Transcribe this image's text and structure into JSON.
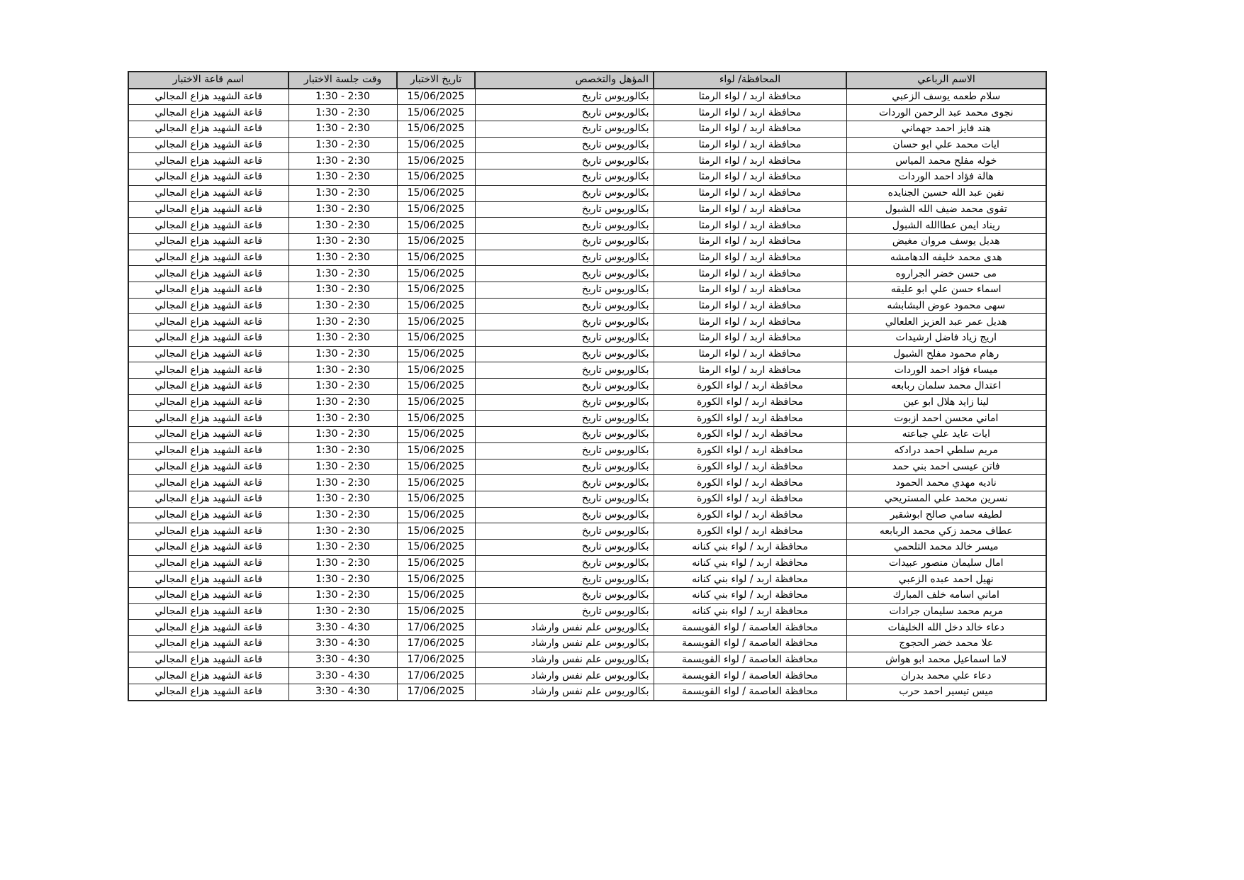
{
  "headers": {
    "name": "الاسم الرباعي",
    "governorate": "المحافظة/ لواء",
    "qualification": "المؤهل والتخصص",
    "date": "تاريخ الاختبار",
    "time": "وقت جلسة الاختبار",
    "room": "اسم قاعة الاختبار"
  },
  "rows": [
    {
      "name": "سلام طعمه يوسف الزعبي",
      "governorate": "محافظة اربد /  لواء الرمثا",
      "qualification": "بكالوريوس تاريخ",
      "date": "15/06/2025",
      "time": "1:30 - 2:30",
      "room": "قاعة الشهيد هزاع المجالي"
    },
    {
      "name": "نجوى محمد عبد الرحمن الوردات",
      "governorate": "محافظة اربد /  لواء الرمثا",
      "qualification": "بكالوريوس تاريخ",
      "date": "15/06/2025",
      "time": "1:30 - 2:30",
      "room": "قاعة الشهيد هزاع المجالي"
    },
    {
      "name": "هند فايز احمد جهماني",
      "governorate": "محافظة اربد /  لواء الرمثا",
      "qualification": "بكالوريوس تاريخ",
      "date": "15/06/2025",
      "time": "1:30 - 2:30",
      "room": "قاعة الشهيد هزاع المجالي"
    },
    {
      "name": "ايات محمد علي ابو حسان",
      "governorate": "محافظة اربد /  لواء الرمثا",
      "qualification": "بكالوريوس تاريخ",
      "date": "15/06/2025",
      "time": "1:30 - 2:30",
      "room": "قاعة الشهيد هزاع المجالي"
    },
    {
      "name": "خوله مفلح محمد المياس",
      "governorate": "محافظة اربد /  لواء الرمثا",
      "qualification": "بكالوريوس تاريخ",
      "date": "15/06/2025",
      "time": "1:30 - 2:30",
      "room": "قاعة الشهيد هزاع المجالي"
    },
    {
      "name": "هالة فؤاد احمد الوردات",
      "governorate": "محافظة اربد /  لواء الرمثا",
      "qualification": "بكالوريوس تاريخ",
      "date": "15/06/2025",
      "time": "1:30 - 2:30",
      "room": "قاعة الشهيد هزاع المجالي"
    },
    {
      "name": "نفين عبد الله حسين الجنايده",
      "governorate": "محافظة اربد /  لواء الرمثا",
      "qualification": "بكالوريوس تاريخ",
      "date": "15/06/2025",
      "time": "1:30 - 2:30",
      "room": "قاعة الشهيد هزاع المجالي"
    },
    {
      "name": "تقوى محمد ضيف الله الشبول",
      "governorate": "محافظة اربد /  لواء الرمثا",
      "qualification": "بكالوريوس تاريخ",
      "date": "15/06/2025",
      "time": "1:30 - 2:30",
      "room": "قاعة الشهيد هزاع المجالي"
    },
    {
      "name": "ريناد ايمن عطاالله الشبول",
      "governorate": "محافظة اربد /  لواء الرمثا",
      "qualification": "بكالوريوس تاريخ",
      "date": "15/06/2025",
      "time": "1:30 - 2:30",
      "room": "قاعة الشهيد هزاع المجالي"
    },
    {
      "name": "هديل يوسف مروان مغيض",
      "governorate": "محافظة اربد /  لواء الرمثا",
      "qualification": "بكالوريوس تاريخ",
      "date": "15/06/2025",
      "time": "1:30 - 2:30",
      "room": "قاعة الشهيد هزاع المجالي"
    },
    {
      "name": "هدى محمد خليفه الدهامشه",
      "governorate": "محافظة اربد /  لواء الرمثا",
      "qualification": "بكالوريوس تاريخ",
      "date": "15/06/2025",
      "time": "1:30 - 2:30",
      "room": "قاعة الشهيد هزاع المجالي"
    },
    {
      "name": "مى حسن خضر الجراروه",
      "governorate": "محافظة اربد /  لواء الرمثا",
      "qualification": "بكالوريوس تاريخ",
      "date": "15/06/2025",
      "time": "1:30 - 2:30",
      "room": "قاعة الشهيد هزاع المجالي"
    },
    {
      "name": "اسماء حسن علي ابو عليقه",
      "governorate": "محافظة اربد /  لواء الرمثا",
      "qualification": "بكالوريوس تاريخ",
      "date": "15/06/2025",
      "time": "1:30 - 2:30",
      "room": "قاعة الشهيد هزاع المجالي"
    },
    {
      "name": "سهى محمود عوض البشابشه",
      "governorate": "محافظة اربد /  لواء الرمثا",
      "qualification": "بكالوريوس تاريخ",
      "date": "15/06/2025",
      "time": "1:30 - 2:30",
      "room": "قاعة الشهيد هزاع المجالي"
    },
    {
      "name": "هديل عمر عبد العزيز العلعالي",
      "governorate": "محافظة اربد /  لواء الرمثا",
      "qualification": "بكالوريوس تاريخ",
      "date": "15/06/2025",
      "time": "1:30 - 2:30",
      "room": "قاعة الشهيد هزاع المجالي"
    },
    {
      "name": "اريج زياد فاضل ارشيدات",
      "governorate": "محافظة اربد /  لواء الرمثا",
      "qualification": "بكالوريوس تاريخ",
      "date": "15/06/2025",
      "time": "1:30 - 2:30",
      "room": "قاعة الشهيد هزاع المجالي"
    },
    {
      "name": "رهام محمود مفلح الشبول",
      "governorate": "محافظة اربد /  لواء الرمثا",
      "qualification": "بكالوريوس تاريخ",
      "date": "15/06/2025",
      "time": "1:30 - 2:30",
      "room": "قاعة الشهيد هزاع المجالي"
    },
    {
      "name": "ميساء فؤاد احمد الوردات",
      "governorate": "محافظة اربد /  لواء الرمثا",
      "qualification": "بكالوريوس تاريخ",
      "date": "15/06/2025",
      "time": "1:30 - 2:30",
      "room": "قاعة الشهيد هزاع المجالي"
    },
    {
      "name": "اعتدال محمد سلمان ربابعه",
      "governorate": "محافظة اربد / لواء الكورة",
      "qualification": "بكالوريوس تاريخ",
      "date": "15/06/2025",
      "time": "1:30 - 2:30",
      "room": "قاعة الشهيد هزاع المجالي"
    },
    {
      "name": "لينا زايد هلال ابو عين",
      "governorate": "محافظة اربد / لواء الكورة",
      "qualification": "بكالوريوس تاريخ",
      "date": "15/06/2025",
      "time": "1:30 - 2:30",
      "room": "قاعة الشهيد هزاع المجالي"
    },
    {
      "name": "اماني محسن احمد ازبوت",
      "governorate": "محافظة اربد / لواء الكورة",
      "qualification": "بكالوريوس تاريخ",
      "date": "15/06/2025",
      "time": "1:30 - 2:30",
      "room": "قاعة الشهيد هزاع المجالي"
    },
    {
      "name": "ايات عايد علي جباعته",
      "governorate": "محافظة اربد / لواء الكورة",
      "qualification": "بكالوريوس تاريخ",
      "date": "15/06/2025",
      "time": "1:30 - 2:30",
      "room": "قاعة الشهيد هزاع المجالي"
    },
    {
      "name": "مريم سلطي احمد درادكه",
      "governorate": "محافظة اربد / لواء الكورة",
      "qualification": "بكالوريوس تاريخ",
      "date": "15/06/2025",
      "time": "1:30 - 2:30",
      "room": "قاعة الشهيد هزاع المجالي"
    },
    {
      "name": "فاتن عيسى احمد بني  حمد",
      "governorate": "محافظة اربد / لواء الكورة",
      "qualification": "بكالوريوس تاريخ",
      "date": "15/06/2025",
      "time": "1:30 - 2:30",
      "room": "قاعة الشهيد هزاع المجالي"
    },
    {
      "name": "ناديه مهدي محمد الحمود",
      "governorate": "محافظة اربد / لواء الكورة",
      "qualification": "بكالوريوس تاريخ",
      "date": "15/06/2025",
      "time": "1:30 - 2:30",
      "room": "قاعة الشهيد هزاع المجالي"
    },
    {
      "name": "نسرين محمد علي المستريحي",
      "governorate": "محافظة اربد / لواء الكورة",
      "qualification": "بكالوريوس تاريخ",
      "date": "15/06/2025",
      "time": "1:30 - 2:30",
      "room": "قاعة الشهيد هزاع المجالي"
    },
    {
      "name": "لطيفه سامي صالح ابوشقير",
      "governorate": "محافظة اربد / لواء الكورة",
      "qualification": "بكالوريوس تاريخ",
      "date": "15/06/2025",
      "time": "1:30 - 2:30",
      "room": "قاعة الشهيد هزاع المجالي"
    },
    {
      "name": "عطاف محمد زكي محمد الربابعه",
      "governorate": "محافظة اربد / لواء الكورة",
      "qualification": "بكالوريوس تاريخ",
      "date": "15/06/2025",
      "time": "1:30 - 2:30",
      "room": "قاعة الشهيد هزاع المجالي"
    },
    {
      "name": "ميسر خالد محمد التلحمي",
      "governorate": "محافظة اربد / لواء بني كنانه",
      "qualification": "بكالوريوس تاريخ",
      "date": "15/06/2025",
      "time": "1:30 - 2:30",
      "room": "قاعة الشهيد هزاع المجالي"
    },
    {
      "name": "امال سليمان منصور عبيدات",
      "governorate": "محافظة اربد / لواء بني كنانه",
      "qualification": "بكالوريوس تاريخ",
      "date": "15/06/2025",
      "time": "1:30 - 2:30",
      "room": "قاعة الشهيد هزاع المجالي"
    },
    {
      "name": "نهيل احمد عبده الزعبي",
      "governorate": "محافظة اربد / لواء بني كنانه",
      "qualification": "بكالوريوس تاريخ",
      "date": "15/06/2025",
      "time": "1:30 - 2:30",
      "room": "قاعة الشهيد هزاع المجالي"
    },
    {
      "name": "اماني اسامه خلف المبارك",
      "governorate": "محافظة اربد / لواء بني كنانه",
      "qualification": "بكالوريوس تاريخ",
      "date": "15/06/2025",
      "time": "1:30 - 2:30",
      "room": "قاعة الشهيد هزاع المجالي"
    },
    {
      "name": "مريم محمد سليمان جرادات",
      "governorate": "محافظة اربد / لواء بني كنانه",
      "qualification": "بكالوريوس تاريخ",
      "date": "15/06/2025",
      "time": "1:30 - 2:30",
      "room": "قاعة الشهيد هزاع المجالي"
    },
    {
      "name": "دعاء خالد دخل الله الخليفات",
      "governorate": "محافظة العاصمة / لواء القويسمة",
      "qualification": "بكالوريوس علم نفس وارشاد",
      "date": "17/06/2025",
      "time": "3:30 - 4:30",
      "room": "قاعة الشهيد هزاع المجالي"
    },
    {
      "name": "علا محمد خضر الحجوج",
      "governorate": "محافظة العاصمة / لواء القويسمة",
      "qualification": "بكالوريوس علم نفس وارشاد",
      "date": "17/06/2025",
      "time": "3:30 - 4:30",
      "room": "قاعة الشهيد هزاع المجالي"
    },
    {
      "name": "لاما اسماعيل محمد ابو هواش",
      "governorate": "محافظة العاصمة / لواء القويسمة",
      "qualification": "بكالوريوس علم نفس وارشاد",
      "date": "17/06/2025",
      "time": "3:30 - 4:30",
      "room": "قاعة الشهيد هزاع المجالي"
    },
    {
      "name": "دعاء علي محمد بدران",
      "governorate": "محافظة العاصمة / لواء القويسمة",
      "qualification": "بكالوريوس علم نفس وارشاد",
      "date": "17/06/2025",
      "time": "3:30 - 4:30",
      "room": "قاعة الشهيد هزاع المجالي"
    },
    {
      "name": "ميس تيسير احمد حرب",
      "governorate": "محافظة العاصمة / لواء القويسمة",
      "qualification": "بكالوريوس علم نفس وارشاد",
      "date": "17/06/2025",
      "time": "3:30 - 4:30",
      "room": "قاعة الشهيد هزاع المجالي"
    }
  ]
}
